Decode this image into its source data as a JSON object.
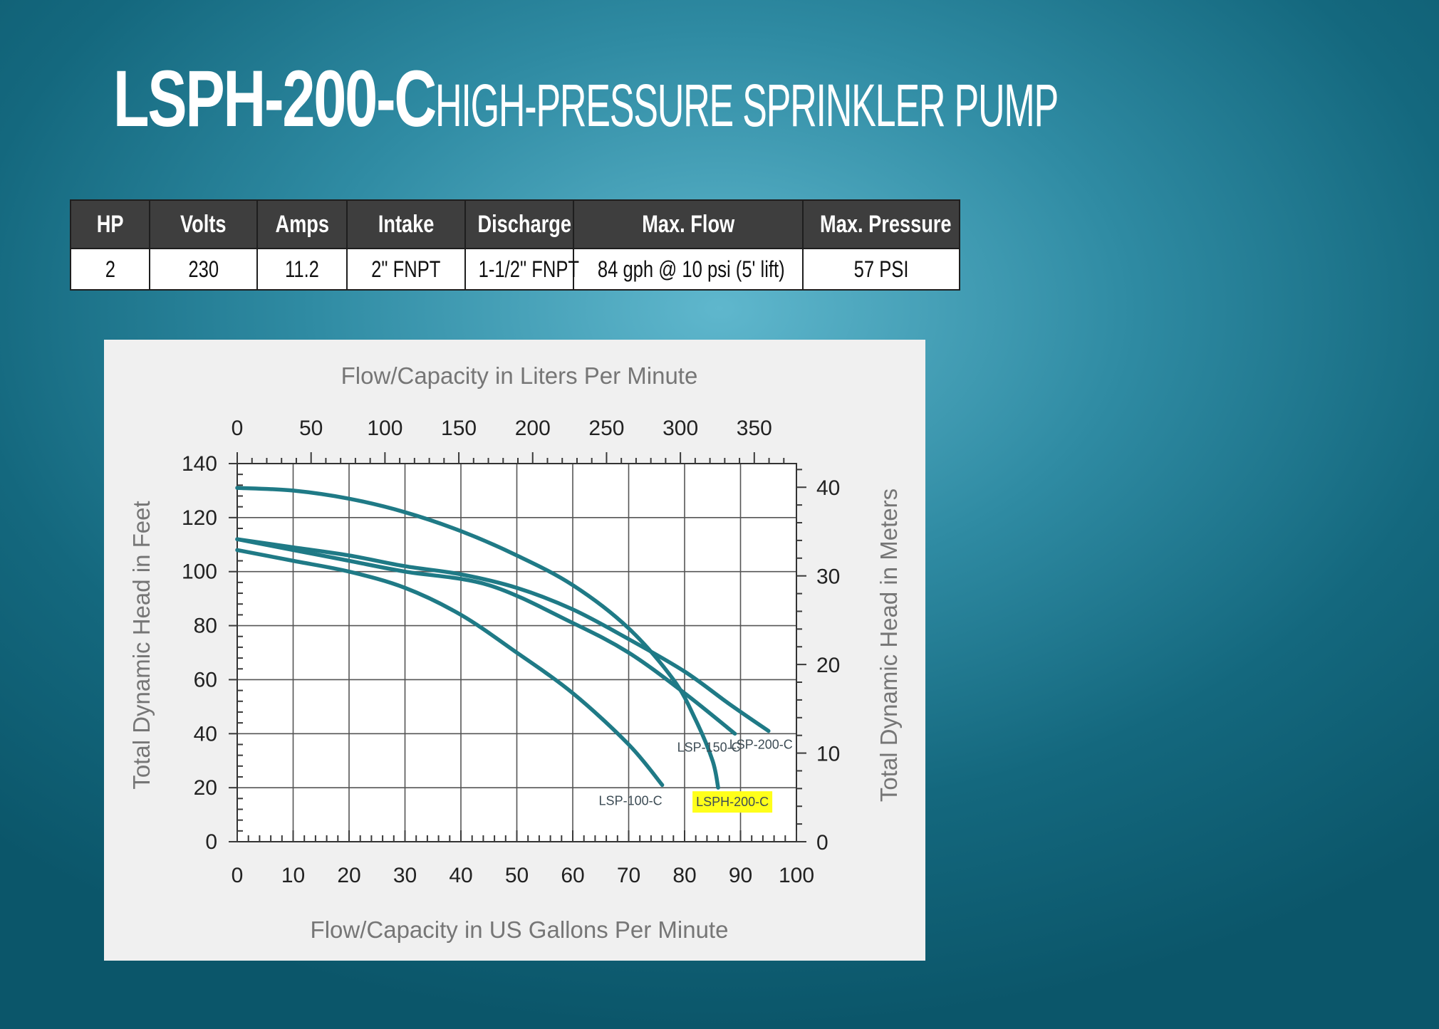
{
  "header": {
    "model": "LSPH-200-C",
    "description": "HIGH-PRESSURE SPRINKLER PUMP"
  },
  "specs": {
    "headers": [
      "HP",
      "Volts",
      "Amps",
      "Intake",
      "Discharge",
      "Max. Flow",
      "Max. Pressure"
    ],
    "values": [
      "2",
      "230",
      "11.2",
      "2\" FNPT",
      "1-1/2\" FNPT",
      "84 gph @ 10 psi (5' lift)",
      "57 PSI"
    ]
  },
  "chart_data": {
    "type": "line",
    "title": "",
    "top_axis_label": "Flow/Capacity in Liters Per Minute",
    "top_ticks": [
      0,
      50,
      100,
      150,
      200,
      250,
      300,
      350
    ],
    "xlabel": "Flow/Capacity in US Gallons Per Minute",
    "ylabel": "Total Dynamic Head in Feet",
    "right_axis_label": "Total Dynamic Head in Meters",
    "right_ticks": [
      0,
      10,
      20,
      30,
      40
    ],
    "xlim": [
      0,
      100
    ],
    "ylim": [
      0,
      140
    ],
    "x_ticks": [
      0,
      10,
      20,
      30,
      40,
      50,
      60,
      70,
      80,
      90,
      100
    ],
    "y_ticks": [
      0,
      20,
      40,
      60,
      80,
      100,
      120,
      140
    ],
    "grid": true,
    "line_color": "#1f7a86",
    "highlight_color": "#ffff1a",
    "series": [
      {
        "name": "LSPH-200-C",
        "highlight": true,
        "points": [
          [
            0,
            131
          ],
          [
            10,
            130
          ],
          [
            20,
            127
          ],
          [
            30,
            122
          ],
          [
            40,
            115
          ],
          [
            50,
            106
          ],
          [
            60,
            95
          ],
          [
            70,
            79
          ],
          [
            78,
            60
          ],
          [
            82,
            45
          ],
          [
            85,
            30
          ],
          [
            86,
            20
          ]
        ]
      },
      {
        "name": "LSP-200-C",
        "highlight": false,
        "points": [
          [
            0,
            112
          ],
          [
            10,
            109
          ],
          [
            20,
            106
          ],
          [
            30,
            102
          ],
          [
            40,
            99
          ],
          [
            50,
            94
          ],
          [
            60,
            86
          ],
          [
            70,
            75
          ],
          [
            80,
            63
          ],
          [
            88,
            51
          ],
          [
            95,
            41
          ]
        ]
      },
      {
        "name": "LSP-150-C",
        "highlight": false,
        "points": [
          [
            0,
            112
          ],
          [
            10,
            108
          ],
          [
            20,
            104
          ],
          [
            30,
            100
          ],
          [
            45,
            95
          ],
          [
            60,
            81
          ],
          [
            70,
            70
          ],
          [
            80,
            55
          ],
          [
            89,
            40
          ]
        ]
      },
      {
        "name": "LSP-100-C",
        "highlight": false,
        "points": [
          [
            0,
            108
          ],
          [
            10,
            104
          ],
          [
            20,
            100
          ],
          [
            30,
            94
          ],
          [
            40,
            84
          ],
          [
            50,
            70
          ],
          [
            60,
            55
          ],
          [
            70,
            36
          ],
          [
            76,
            21
          ]
        ]
      }
    ]
  }
}
